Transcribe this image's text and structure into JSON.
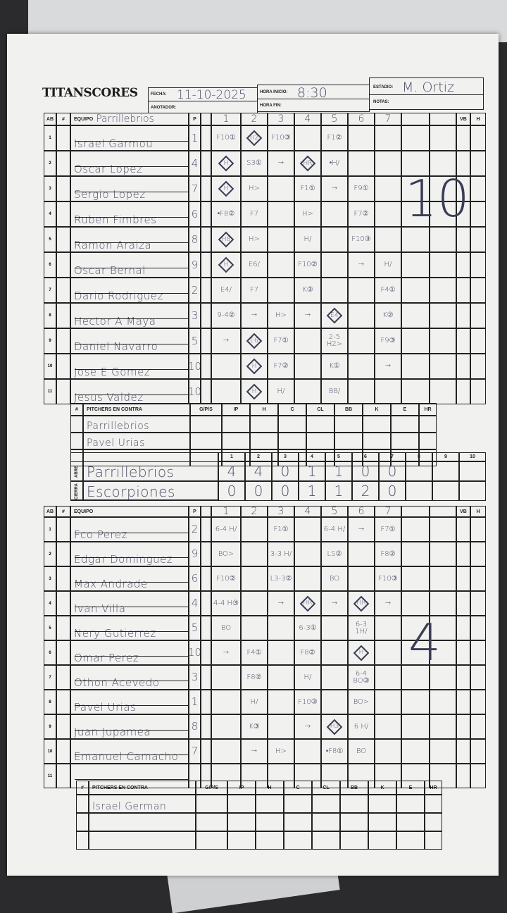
{
  "header": {
    "logo": "TITANSCORES",
    "fecha_label": "FECHA:",
    "fecha": "11-10-2025",
    "anotador_label": "ANOTADOR:",
    "anotador": "",
    "hora_inicio_label": "HORA INICIO:",
    "hora_inicio": "8:30",
    "hora_fin_label": "HORA FIN:",
    "hora_fin": "",
    "estadio_label": "ESTADIO:",
    "estadio": "M. Ortiz",
    "notas_label": "NOTAS:",
    "notas": ""
  },
  "columns": {
    "ab": "AB",
    "num": "#",
    "equipo": "EQUIPO",
    "p": "P",
    "vb": "VB",
    "h": "H"
  },
  "top_team": {
    "name": "Parrillebrios",
    "innings": [
      "1",
      "2",
      "3",
      "4",
      "5",
      "6",
      "7",
      "",
      "",
      ""
    ],
    "total_note": "10",
    "players": [
      {
        "ab": "1",
        "name": "Israel Garmou",
        "pos": "1",
        "plays": [
          {
            "t": "F10①"
          },
          {
            "t": "H2",
            "d": true
          },
          {
            "t": "F10③"
          },
          {
            "t": ""
          },
          {
            "t": "F1②"
          },
          {
            "t": ""
          },
          {
            "t": ""
          }
        ]
      },
      {
        "ab": "2",
        "name": "Oscar Lopez",
        "pos": "4",
        "plays": [
          {
            "t": "H",
            "d": true
          },
          {
            "t": "S3①"
          },
          {
            "t": "→"
          },
          {
            "t": "HR",
            "d": true
          },
          {
            "t": "•H/"
          },
          {
            "t": ""
          },
          {
            "t": ""
          }
        ]
      },
      {
        "ab": "3",
        "name": "Sergio Lopez",
        "pos": "7",
        "plays": [
          {
            "t": "H",
            "d": true
          },
          {
            "t": "H>"
          },
          {
            "t": ""
          },
          {
            "t": "F1①"
          },
          {
            "t": "→"
          },
          {
            "t": "F9①"
          },
          {
            "t": ""
          }
        ]
      },
      {
        "ab": "4",
        "name": "Ruben Fimbres",
        "pos": "6",
        "plays": [
          {
            "t": "•F8②"
          },
          {
            "t": "F7"
          },
          {
            "t": ""
          },
          {
            "t": "H>"
          },
          {
            "t": ""
          },
          {
            "t": "F7②"
          },
          {
            "t": ""
          }
        ]
      },
      {
        "ab": "5",
        "name": "Ramon Araiza",
        "pos": "8",
        "plays": [
          {
            "t": "H8",
            "d": true
          },
          {
            "t": "H>"
          },
          {
            "t": ""
          },
          {
            "t": "H/"
          },
          {
            "t": ""
          },
          {
            "t": "F10③"
          },
          {
            "t": ""
          }
        ]
      },
      {
        "ab": "6",
        "name": "Oscar Bernal",
        "pos": "9",
        "plays": [
          {
            "t": "H",
            "d": true
          },
          {
            "t": "E6/"
          },
          {
            "t": ""
          },
          {
            "t": "F10②"
          },
          {
            "t": ""
          },
          {
            "t": "→"
          },
          {
            "t": "H/"
          }
        ]
      },
      {
        "ab": "7",
        "name": "Dario Rodriguez",
        "pos": "2",
        "plays": [
          {
            "t": "E4/"
          },
          {
            "t": "F7"
          },
          {
            "t": ""
          },
          {
            "t": "K③"
          },
          {
            "t": ""
          },
          {
            "t": ""
          },
          {
            "t": "F4①"
          }
        ]
      },
      {
        "ab": "8",
        "name": "Hector A Maya",
        "pos": "3",
        "plays": [
          {
            "t": "9-4②"
          },
          {
            "t": "→"
          },
          {
            "t": "H>"
          },
          {
            "t": "→"
          },
          {
            "t": "E4",
            "d": true
          },
          {
            "t": ""
          },
          {
            "t": "K②"
          }
        ]
      },
      {
        "ab": "9",
        "name": "Daniel Navarro",
        "pos": "5",
        "plays": [
          {
            "t": "→"
          },
          {
            "t": "E6",
            "d": true
          },
          {
            "t": "F7①"
          },
          {
            "t": ""
          },
          {
            "t": "2-5 H2>"
          },
          {
            "t": ""
          },
          {
            "t": "F9③"
          }
        ]
      },
      {
        "ab": "10",
        "name": "Jose E Gomez",
        "pos": "10",
        "plays": [
          {
            "t": ""
          },
          {
            "t": "H",
            "d": true
          },
          {
            "t": "F7②"
          },
          {
            "t": ""
          },
          {
            "t": "K①"
          },
          {
            "t": ""
          },
          {
            "t": "→"
          }
        ]
      },
      {
        "ab": "11",
        "name": "Jesus Valdez",
        "pos": "10",
        "plays": [
          {
            "t": ""
          },
          {
            "t": "H",
            "d": true
          },
          {
            "t": "H/"
          },
          {
            "t": ""
          },
          {
            "t": "BB/"
          },
          {
            "t": ""
          },
          {
            "t": ""
          }
        ]
      }
    ]
  },
  "pitchers_headers": [
    "#",
    "PITCHERS EN CONTRA",
    "G/P/S",
    "IP",
    "H",
    "C",
    "CL",
    "BB",
    "K",
    "E",
    "HR"
  ],
  "top_pitchers": [
    "Parrillebrios",
    "Pavel Urias",
    ""
  ],
  "line_score": {
    "innings": [
      "1",
      "2",
      "3",
      "4",
      "5",
      "6",
      "7",
      "8",
      "9",
      "10"
    ],
    "teams": [
      {
        "side": "ABRE",
        "name": "Parrillebrios",
        "runs": [
          "4",
          "4",
          "0",
          "1",
          "1",
          "0",
          "0",
          "",
          "",
          ""
        ]
      },
      {
        "side": "CIERRA",
        "name": "Escorpiones",
        "runs": [
          "0",
          "0",
          "0",
          "1",
          "1",
          "2",
          "0",
          "",
          "",
          ""
        ]
      }
    ]
  },
  "bottom_team": {
    "name": "",
    "innings": [
      "1",
      "2",
      "3",
      "4",
      "5",
      "6",
      "7",
      "",
      "",
      ""
    ],
    "total_note": "4",
    "players": [
      {
        "ab": "1",
        "name": "Fco Perez",
        "pos": "2",
        "plays": [
          {
            "t": "6-4 H/"
          },
          {
            "t": ""
          },
          {
            "t": "F1①"
          },
          {
            "t": ""
          },
          {
            "t": "6-4 H/"
          },
          {
            "t": "→"
          },
          {
            "t": "F7①"
          }
        ]
      },
      {
        "ab": "2",
        "name": "Edgar Dominguez",
        "pos": "9",
        "plays": [
          {
            "t": "BO>"
          },
          {
            "t": ""
          },
          {
            "t": "3-3 H/"
          },
          {
            "t": ""
          },
          {
            "t": "LS②"
          },
          {
            "t": ""
          },
          {
            "t": "F8②"
          }
        ]
      },
      {
        "ab": "3",
        "name": "Max Andrade",
        "pos": "6",
        "plays": [
          {
            "t": "F10②"
          },
          {
            "t": ""
          },
          {
            "t": "L3-3②"
          },
          {
            "t": ""
          },
          {
            "t": "BO"
          },
          {
            "t": ""
          },
          {
            "t": "F10③"
          }
        ]
      },
      {
        "ab": "4",
        "name": "Ivan Villa",
        "pos": "4",
        "plays": [
          {
            "t": "4-4 H③"
          },
          {
            "t": ""
          },
          {
            "t": "→"
          },
          {
            "t": "HR",
            "d": true
          },
          {
            "t": "→"
          },
          {
            "t": "HR",
            "d": true
          },
          {
            "t": "→"
          }
        ]
      },
      {
        "ab": "5",
        "name": "Nery Gutierrez",
        "pos": "5",
        "plays": [
          {
            "t": "BO"
          },
          {
            "t": ""
          },
          {
            "t": ""
          },
          {
            "t": "6-3①"
          },
          {
            "t": ""
          },
          {
            "t": "6-3 1H/"
          },
          {
            "t": ""
          }
        ]
      },
      {
        "ab": "6",
        "name": "Omar Perez",
        "pos": "10",
        "plays": [
          {
            "t": "→"
          },
          {
            "t": "F4①"
          },
          {
            "t": ""
          },
          {
            "t": "F8②"
          },
          {
            "t": ""
          },
          {
            "t": "H",
            "d": true
          },
          {
            "t": ""
          }
        ]
      },
      {
        "ab": "7",
        "name": "Othon Acevedo",
        "pos": "3",
        "plays": [
          {
            "t": ""
          },
          {
            "t": "F8②"
          },
          {
            "t": ""
          },
          {
            "t": "H/"
          },
          {
            "t": ""
          },
          {
            "t": "6-4 BO③"
          },
          {
            "t": ""
          }
        ]
      },
      {
        "ab": "8",
        "name": "Pavel Urias",
        "pos": "1",
        "plays": [
          {
            "t": ""
          },
          {
            "t": "H/"
          },
          {
            "t": ""
          },
          {
            "t": "F10③"
          },
          {
            "t": ""
          },
          {
            "t": "BO>"
          },
          {
            "t": ""
          }
        ]
      },
      {
        "ab": "9",
        "name": "Juan Jupamea",
        "pos": "8",
        "plays": [
          {
            "t": ""
          },
          {
            "t": "K③"
          },
          {
            "t": ""
          },
          {
            "t": "→"
          },
          {
            "t": "H3",
            "d": true
          },
          {
            "t": "6 H/"
          },
          {
            "t": ""
          }
        ]
      },
      {
        "ab": "10",
        "name": "Emanuel Camacho",
        "pos": "7",
        "plays": [
          {
            "t": ""
          },
          {
            "t": "→"
          },
          {
            "t": "H>"
          },
          {
            "t": ""
          },
          {
            "t": "•F8①"
          },
          {
            "t": "BO"
          },
          {
            "t": ""
          }
        ]
      },
      {
        "ab": "11",
        "name": "",
        "pos": "",
        "plays": []
      }
    ]
  },
  "bottom_pitchers": [
    "Israel German",
    "",
    ""
  ],
  "colors": {
    "ink": "#4d5068",
    "paper": "#f1f1f0",
    "grid": "#222222"
  }
}
